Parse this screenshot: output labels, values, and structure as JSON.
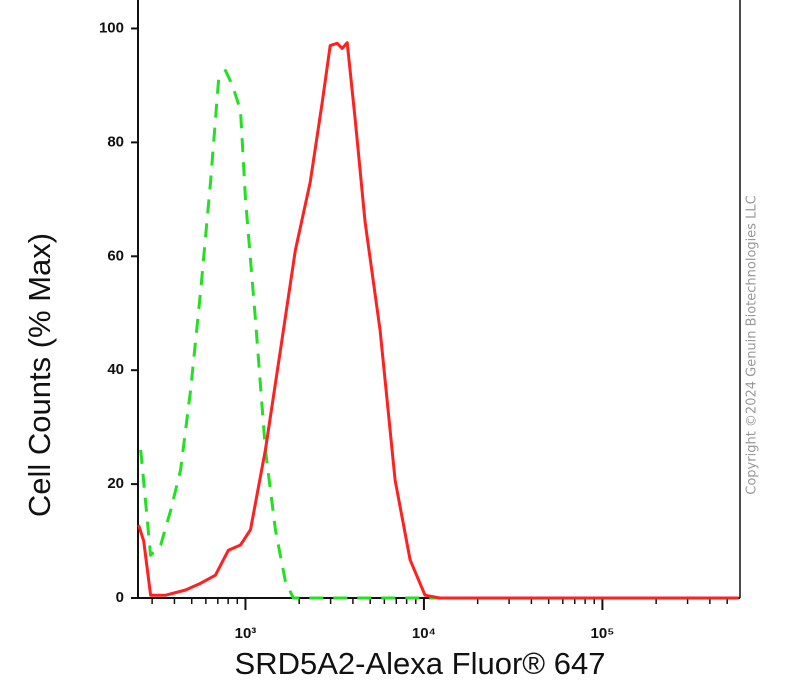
{
  "chart_data": {
    "type": "line",
    "xlabel": "SRD5A2-Alexa Fluor® 647",
    "ylabel": "Cell Counts (% Max)",
    "watermark": "Copyright ©2024 Genuin Biotechnologies LLC",
    "xscale": "log",
    "xlim": [
      250,
      590000
    ],
    "ylim": [
      0,
      105
    ],
    "xticks": [
      {
        "value": 1000,
        "label": "10³"
      },
      {
        "value": 10000,
        "label": "10⁴"
      },
      {
        "value": 100000,
        "label": "10⁵"
      }
    ],
    "xminorticks": [
      300,
      400,
      500,
      600,
      700,
      800,
      900,
      2000,
      3000,
      4000,
      5000,
      6000,
      7000,
      8000,
      9000,
      20000,
      30000,
      40000,
      50000,
      60000,
      70000,
      80000,
      90000,
      200000,
      300000,
      400000,
      500000
    ],
    "yticks": [
      0,
      20,
      40,
      60,
      80,
      100
    ],
    "series": [
      {
        "color": "#22e022",
        "linestyle": "dashed",
        "x": [
          259,
          294,
          335,
          381,
          433,
          493,
          561,
          637,
          707,
          773,
          846,
          938,
          1000,
          1137,
          1293,
          1471,
          1672,
          1854,
          2622,
          580000
        ],
        "values": [
          26,
          7.5,
          9.3,
          15.4,
          22.5,
          36.5,
          54,
          73,
          91,
          92.6,
          90,
          85.6,
          70,
          49,
          26,
          12,
          3,
          0,
          0,
          0
        ]
      },
      {
        "color": "#ff2020",
        "linestyle": "solid",
        "x": [
          252,
          269,
          294,
          357,
          462,
          561,
          679,
          803,
          938,
          1067,
          1293,
          1570,
          1902,
          2306,
          2692,
          2985,
          3268,
          3484,
          3715,
          4121,
          4680,
          5680,
          6890,
          8360,
          10140,
          12280,
          580000
        ],
        "values": [
          12.8,
          10,
          0.5,
          0.5,
          1.4,
          2.6,
          4,
          8.4,
          9.3,
          12,
          26,
          43.5,
          61,
          73,
          87,
          97,
          97.4,
          96.5,
          97.5,
          84,
          66,
          47,
          20.7,
          6.7,
          0.5,
          0,
          0
        ]
      }
    ]
  }
}
